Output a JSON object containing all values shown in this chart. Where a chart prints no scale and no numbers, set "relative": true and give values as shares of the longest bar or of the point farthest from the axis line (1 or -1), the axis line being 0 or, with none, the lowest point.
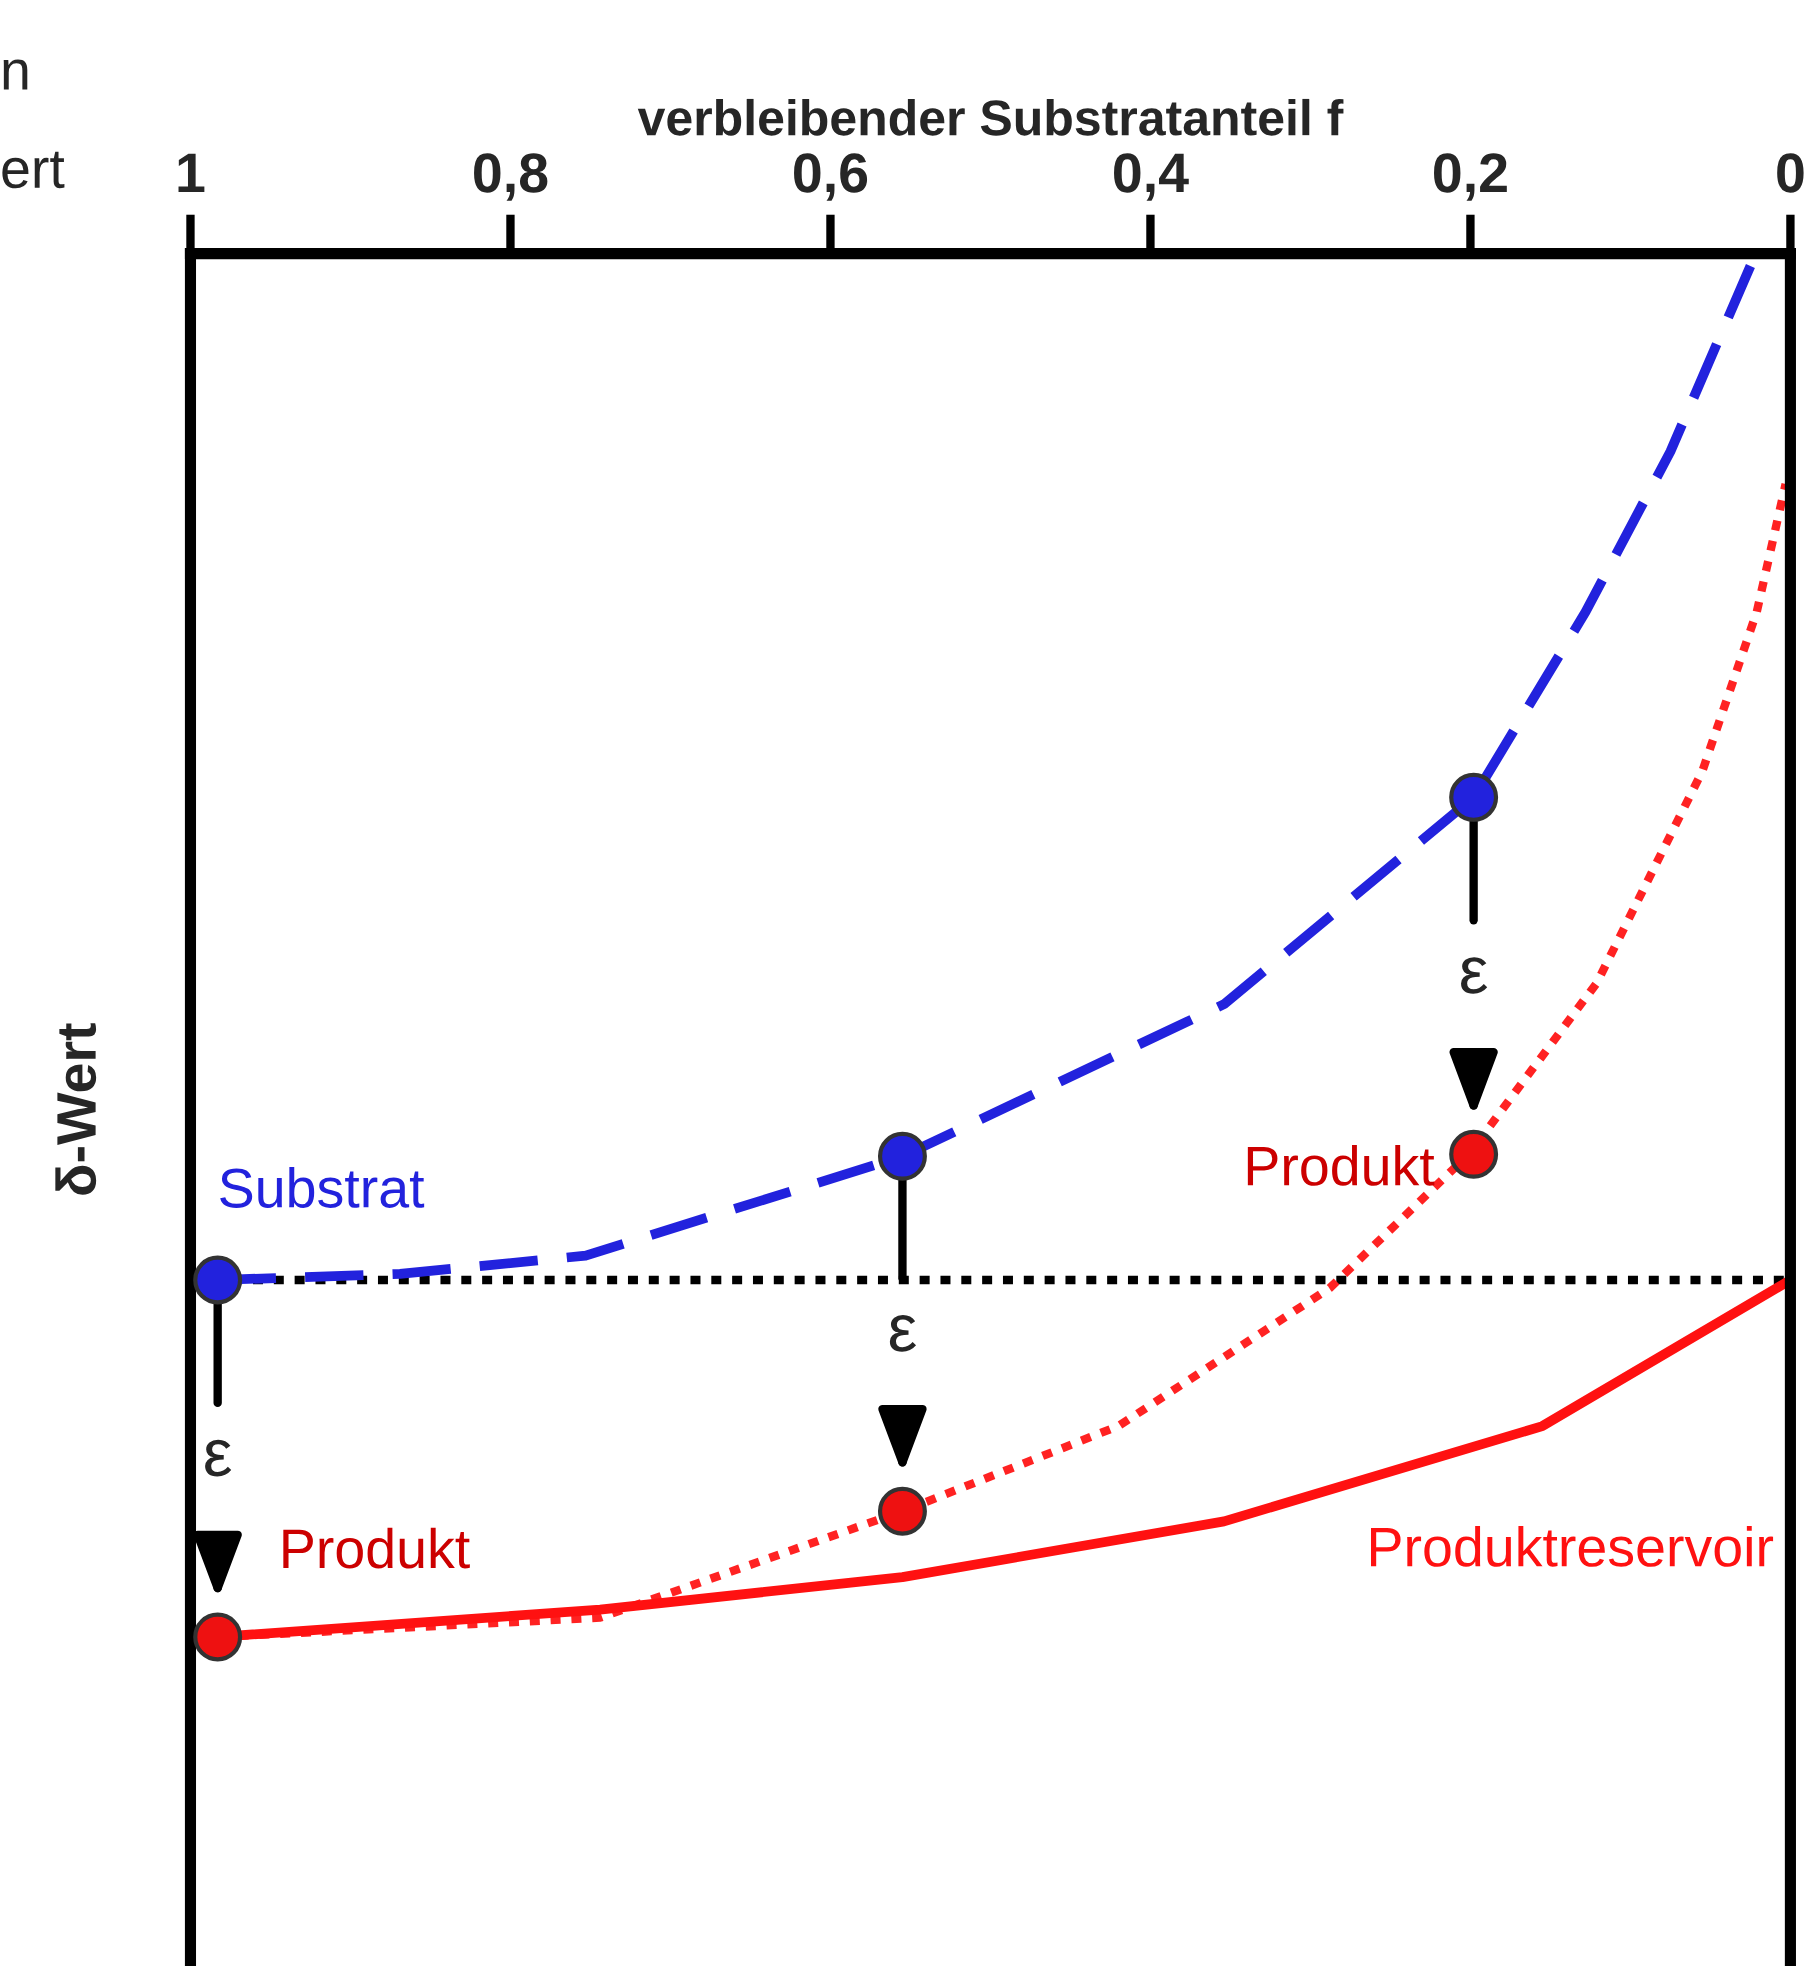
{
  "chart_data": {
    "type": "line",
    "relative": true,
    "xlabel": "verbleibender Substratanteil f",
    "ylabel": "δ-Wert",
    "xlim": [
      1,
      0
    ],
    "xticks": [
      1,
      {
        "value": 0.8,
        "label": "0,8"
      },
      {
        "value": 0.6,
        "label": "0,6"
      },
      {
        "value": 0.4,
        "label": "0,4"
      },
      {
        "value": 0.2,
        "label": "0,2"
      },
      0
    ],
    "grid": false,
    "legend": false,
    "tick_labels": "x",
    "series": [
      {
        "name": "Substrat",
        "color": "#2222dd",
        "line_style": "dashed",
        "marker": "none",
        "x": [
          0.983,
          0.869,
          0.753,
          0.555,
          0.354,
          0.198,
          0.128,
          0.075,
          0.025
        ],
        "values": [
          0,
          0.006,
          0.024,
          0.122,
          0.272,
          0.476,
          0.659,
          0.817,
          1
        ]
      },
      {
        "color": "#ff2222",
        "line_style": "dotted",
        "marker": "none",
        "x": [
          0.983,
          0.744,
          0.555,
          0.42,
          0.288,
          0.201,
          0.121,
          0.055,
          0.021,
          0.003
        ],
        "values": [
          -0.352,
          -0.333,
          -0.228,
          -0.144,
          -0.008,
          0.124,
          0.293,
          0.502,
          0.659,
          0.785
        ]
      },
      {
        "name": "Produktreservoir",
        "color": "#ff1111",
        "line_style": "solid",
        "marker": "none",
        "x": [
          0.983,
          0.744,
          0.555,
          0.354,
          0.155,
          0
        ],
        "values": [
          -0.352,
          -0.325,
          -0.293,
          -0.238,
          -0.144,
          0
        ]
      },
      {
        "type": "scatter",
        "color": "#2222dd",
        "marker": "circle",
        "x": [
          0.983,
          0.555,
          0.198
        ],
        "values": [
          0,
          0.122,
          0.476
        ]
      },
      {
        "type": "scatter",
        "color": "#ee1111",
        "marker": "circle",
        "x": [
          0.983,
          0.555,
          0.198
        ],
        "values": [
          -0.352,
          -0.228,
          0.124
        ]
      }
    ],
    "ref_lines": [
      {
        "axis": "y",
        "value": 0,
        "color": "#000000",
        "line_style": "dotted"
      }
    ],
    "annotations": [
      "n",
      "ert",
      {
        "text": "ε",
        "x": 0.983,
        "y": -0.352
      },
      {
        "text": "ε",
        "x": 0.555,
        "y": -0.228
      },
      {
        "text": "ε",
        "x": 0.198,
        "y": 0.124
      },
      {
        "text": "Produkt",
        "x": 0.983,
        "y": -0.352
      },
      {
        "text": "Produkt",
        "x": 0.198,
        "y": 0.124
      }
    ]
  }
}
